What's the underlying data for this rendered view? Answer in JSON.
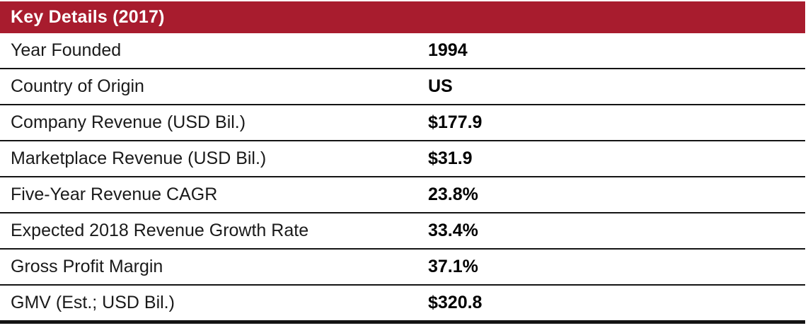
{
  "colors": {
    "header_bg": "#A81C2E",
    "header_text": "#FFFFFF",
    "divider": "#141414",
    "label_text": "#1A1A1A",
    "value_text": "#000000",
    "background": "#FFFFFF"
  },
  "table": {
    "title": "Key Details (2017)",
    "rows": [
      {
        "label": "Year Founded",
        "value": "1994"
      },
      {
        "label": "Country of Origin",
        "value": "US"
      },
      {
        "label": "Company Revenue (USD Bil.)",
        "value": "$177.9"
      },
      {
        "label": "Marketplace Revenue (USD Bil.)",
        "value": "$31.9"
      },
      {
        "label": "Five-Year Revenue CAGR",
        "value": "23.8%"
      },
      {
        "label": "Expected 2018 Revenue Growth Rate",
        "value": "33.4%"
      },
      {
        "label": "Gross Profit Margin",
        "value": "37.1%"
      },
      {
        "label": "GMV (Est.; USD Bil.)",
        "value": "$320.8"
      }
    ]
  }
}
